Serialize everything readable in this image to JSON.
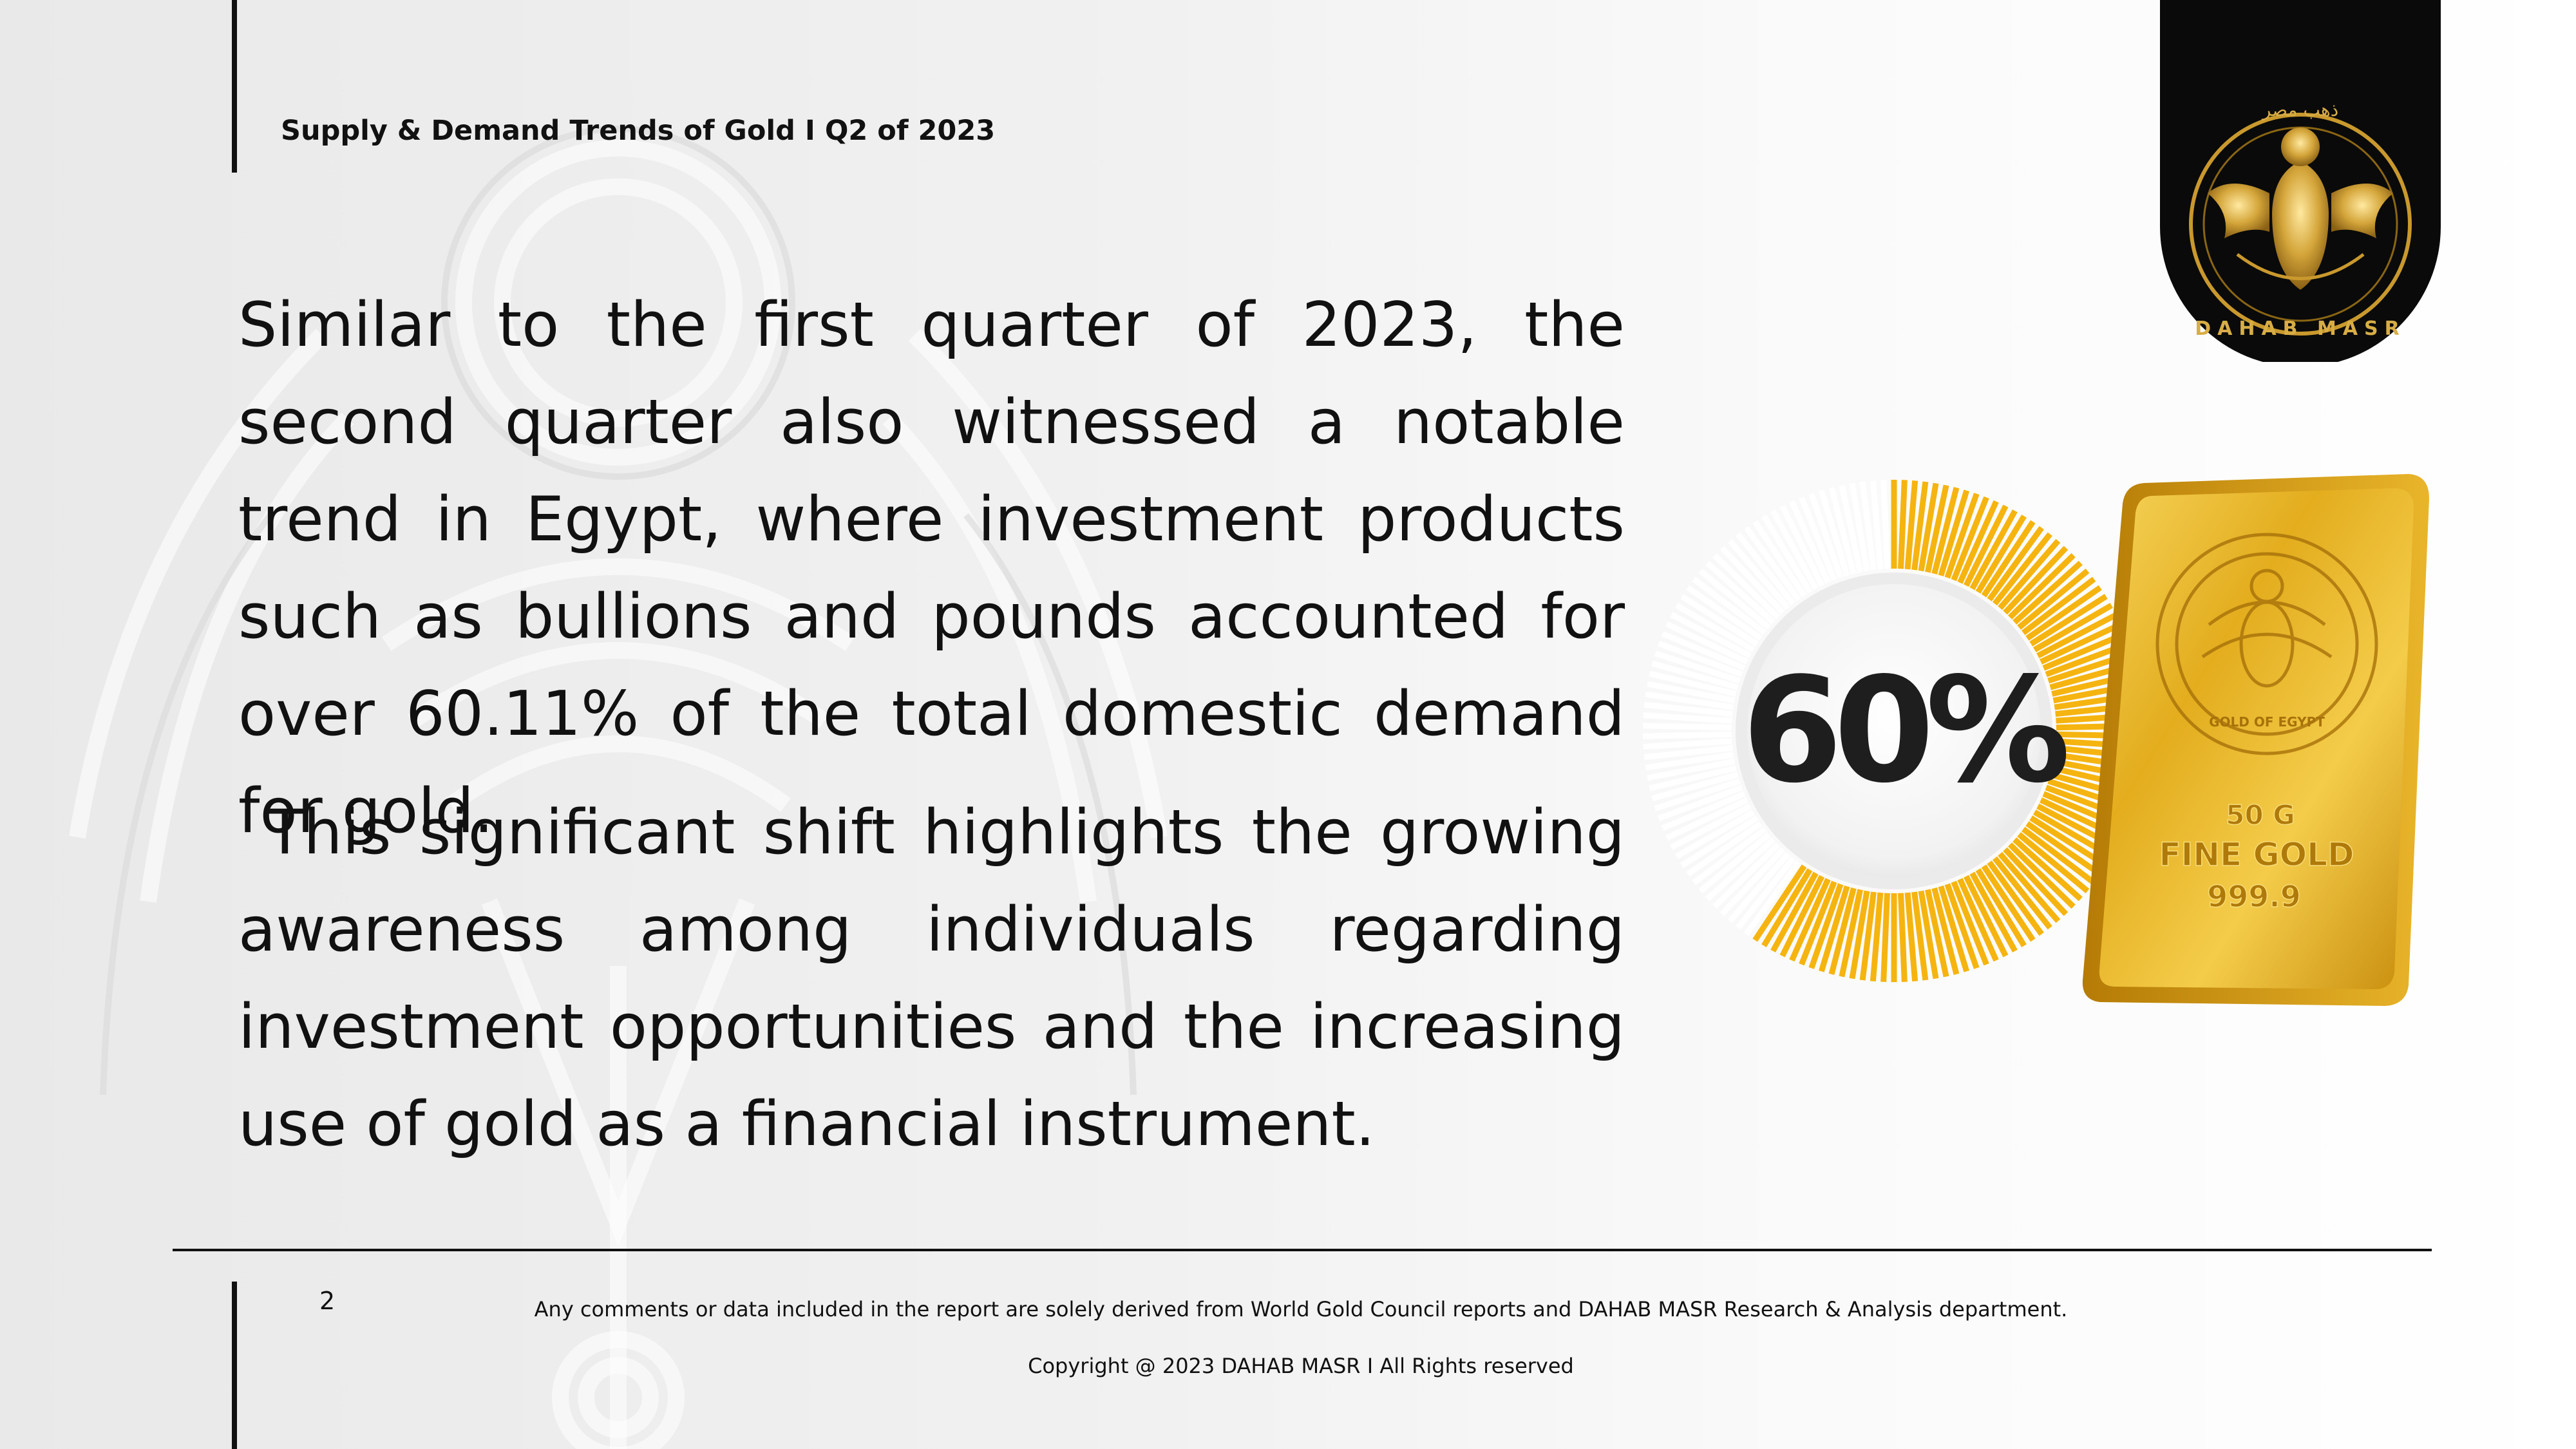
{
  "header": {
    "title": "Supply & Demand Trends of Gold I Q2 of 2023"
  },
  "body": {
    "paragraph_1": "Similar to the first quarter of 2023, the second quarter also witnessed a notable trend in Egypt, where investment products such as bullions and pounds accounted for over 60.11% of the total domestic demand for gold.",
    "paragraph_2": " This significant shift highlights the growing awareness among individuals regarding investment opportunities and the increasing use of gold as a financial instrument."
  },
  "graphic": {
    "percentage_label": "60%",
    "percentage_value": 60,
    "accent_color": "#F5B40F",
    "gold_bar": {
      "weight": "50 G",
      "type": "FINE GOLD",
      "purity": "999.9",
      "seal_text": "GOLD OF EGYPT"
    }
  },
  "logo": {
    "brand": "DAHAB MASR",
    "arabic": "ذهب مصر"
  },
  "footer": {
    "page_number": "2",
    "note": "Any comments or data included in the report are solely derived from World Gold Council reports and DAHAB MASR Research & Analysis department.",
    "copyright": "Copyright @ 2023 DAHAB MASR I All Rights reserved"
  }
}
